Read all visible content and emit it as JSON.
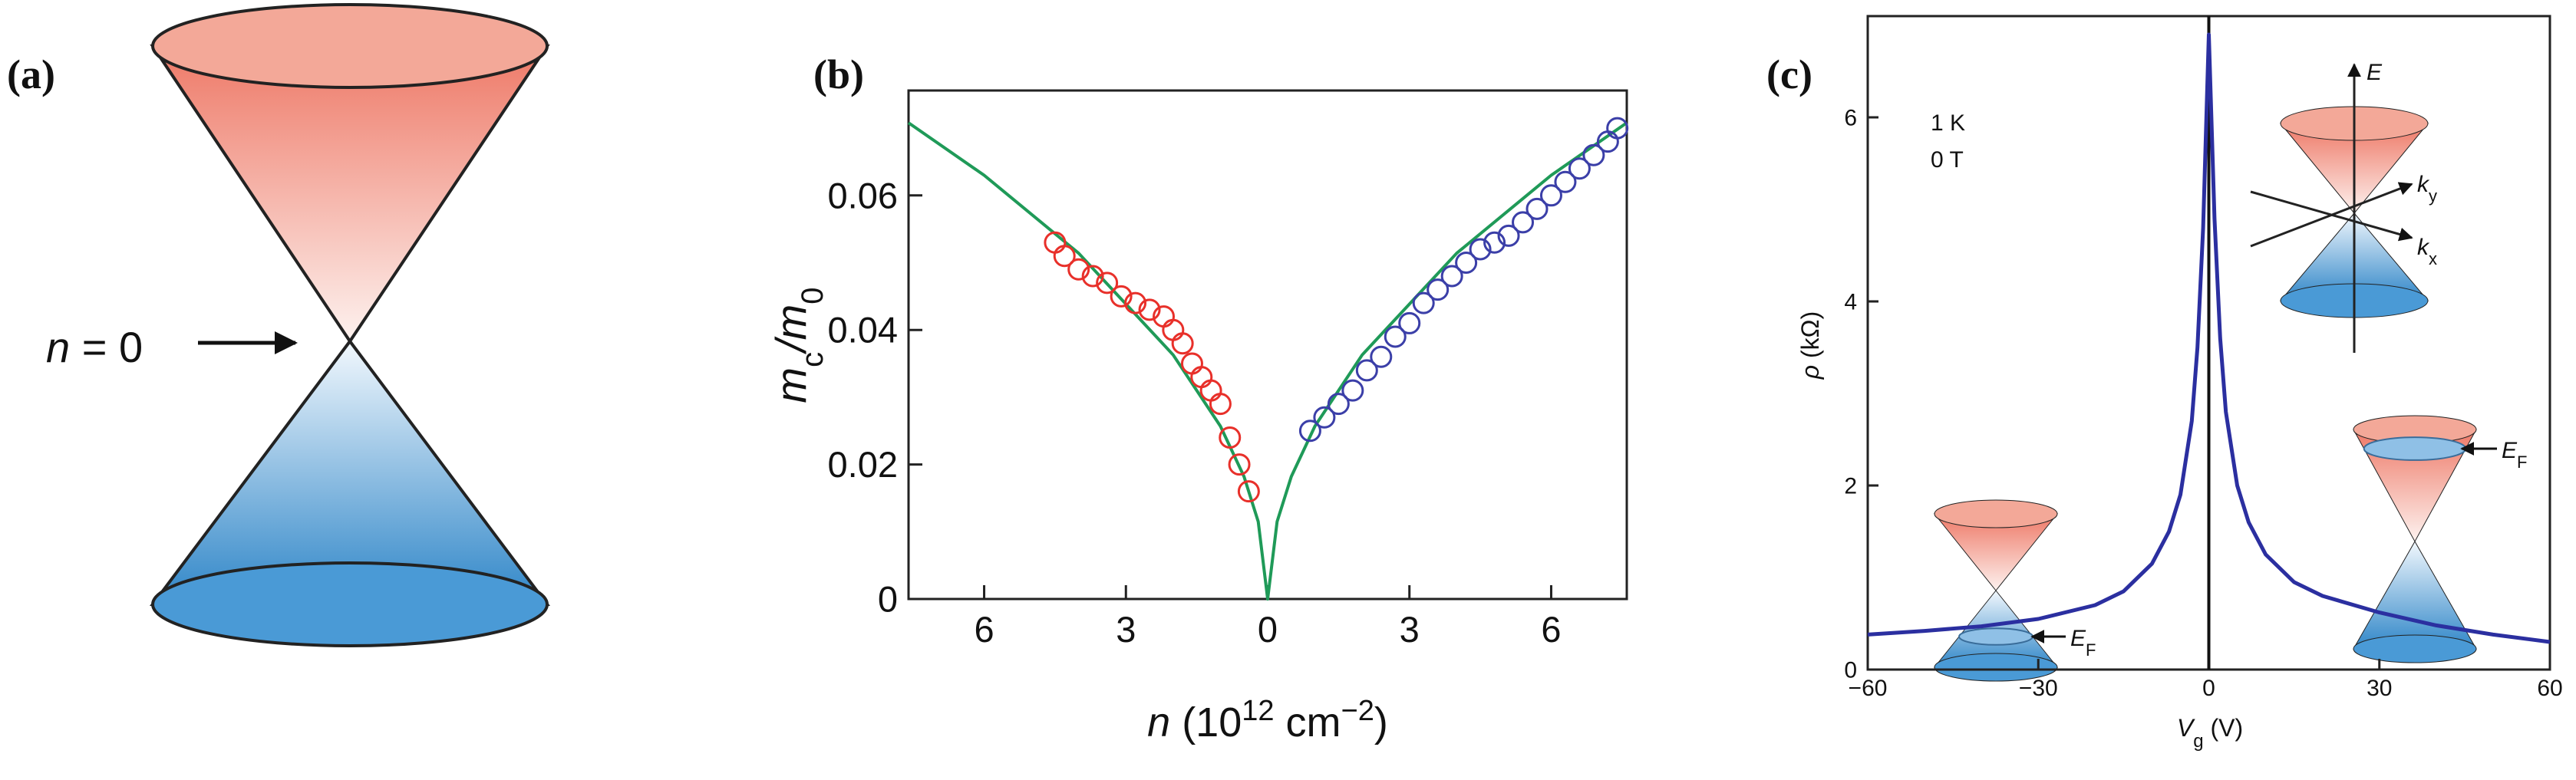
{
  "panel_a": {
    "label": "(a)",
    "annotation": [
      "n",
      " = 0"
    ]
  },
  "chart_data": [
    {
      "type": "scatter",
      "label": "(b)",
      "ylabel": [
        "m",
        "c",
        "/m",
        "0"
      ],
      "xlabel": [
        "n",
        " (10",
        "12",
        " cm",
        "−2",
        ")"
      ],
      "xlim": [
        -7.6,
        7.6
      ],
      "xticks": [
        {
          "value": -6,
          "label": "6"
        },
        {
          "value": -3,
          "label": "3"
        },
        0,
        3,
        6
      ],
      "ylim": [
        0,
        0.0756
      ],
      "yticks": [
        0,
        0.02,
        0.04,
        0.06
      ],
      "series": [
        {
          "type": "scatter",
          "color": "#e8302a",
          "x": [
            -4.5,
            -4.3,
            -4.0,
            -3.7,
            -3.4,
            -3.1,
            -2.8,
            -2.5,
            -2.2,
            -2.0,
            -1.8,
            -1.6,
            -1.4,
            -1.2,
            -1.0,
            -0.8,
            -0.6,
            -0.4
          ],
          "values": [
            0.053,
            0.051,
            0.049,
            0.048,
            0.047,
            0.045,
            0.044,
            0.043,
            0.042,
            0.04,
            0.038,
            0.035,
            0.033,
            0.031,
            0.029,
            0.024,
            0.02,
            0.016
          ]
        },
        {
          "type": "scatter",
          "color": "#3b3fa8",
          "x": [
            0.9,
            1.2,
            1.5,
            1.8,
            2.1,
            2.4,
            2.7,
            3.0,
            3.3,
            3.6,
            3.9,
            4.2,
            4.5,
            4.8,
            5.1,
            5.4,
            5.7,
            6.0,
            6.3,
            6.6,
            6.9,
            7.2,
            7.4
          ],
          "values": [
            0.025,
            0.027,
            0.029,
            0.031,
            0.034,
            0.036,
            0.039,
            0.041,
            0.044,
            0.046,
            0.048,
            0.05,
            0.052,
            0.053,
            0.054,
            0.056,
            0.058,
            0.06,
            0.062,
            0.064,
            0.066,
            0.068,
            0.07
          ]
        },
        {
          "type": "line",
          "color": "#1f9a58",
          "x": [
            -7.6,
            -6,
            -4,
            -2,
            -1,
            -0.5,
            -0.2,
            0,
            0.2,
            0.5,
            1,
            2,
            4,
            6,
            7.6
          ],
          "values": [
            0.0708,
            0.063,
            0.0514,
            0.0363,
            0.0257,
            0.0182,
            0.0115,
            0,
            0.0115,
            0.0182,
            0.0257,
            0.0363,
            0.0514,
            0.063,
            0.0708
          ]
        }
      ]
    },
    {
      "type": "line",
      "label": "(c)",
      "ylabel": [
        "ρ",
        " (kΩ)"
      ],
      "xlabel": [
        "V",
        "g",
        " (V)"
      ],
      "annotations": [
        "1 K",
        "0 T"
      ],
      "inset_labels": {
        "energy": "E",
        "ky": [
          "k",
          "y"
        ],
        "kx": [
          "k",
          "x"
        ],
        "fermi_left": [
          "E",
          "F"
        ],
        "fermi_right": [
          "E",
          "F"
        ]
      },
      "xlim": [
        -60,
        60
      ],
      "xticks": [
        {
          "value": -60,
          "label": "−60"
        },
        {
          "value": -30,
          "label": "−30"
        },
        0,
        30,
        60
      ],
      "ylim": [
        0,
        7.1
      ],
      "yticks": [
        0,
        2,
        4,
        6
      ],
      "series": [
        {
          "type": "line",
          "color": "#2b2fa0",
          "x": [
            -60,
            -50,
            -40,
            -30,
            -20,
            -15,
            -10,
            -7,
            -5,
            -3,
            -2,
            -1,
            0,
            1,
            2,
            3,
            5,
            7,
            10,
            15,
            20,
            30,
            40,
            50,
            60
          ],
          "values": [
            0.38,
            0.42,
            0.47,
            0.55,
            0.7,
            0.85,
            1.15,
            1.5,
            1.9,
            2.7,
            3.5,
            4.8,
            6.9,
            4.9,
            3.6,
            2.8,
            2.0,
            1.6,
            1.25,
            0.95,
            0.8,
            0.62,
            0.48,
            0.38,
            0.3
          ]
        }
      ]
    }
  ]
}
